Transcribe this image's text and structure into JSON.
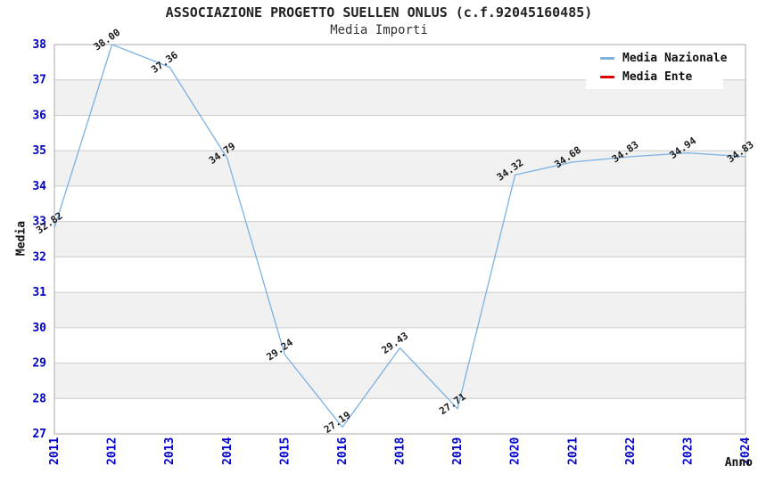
{
  "header": {
    "title": "ASSOCIAZIONE PROGETTO SUELLEN ONLUS (c.f.92045160485)",
    "subtitle": "Media Importi"
  },
  "legend": {
    "items": [
      {
        "label": "Media Nazionale",
        "color": "#7bb1e3"
      },
      {
        "label": "Media Ente",
        "color": "#dd0000"
      }
    ]
  },
  "chart_data": {
    "type": "line",
    "title": "ASSOCIAZIONE PROGETTO SUELLEN ONLUS (c.f.92045160485)",
    "subtitle": "Media Importi",
    "xlabel": "Anno",
    "ylabel": "Media",
    "ylim": [
      27,
      38
    ],
    "y_ticks": [
      27,
      28,
      29,
      30,
      31,
      32,
      33,
      34,
      35,
      36,
      37,
      38
    ],
    "categories": [
      "2011",
      "2012",
      "2013",
      "2014",
      "2015",
      "2016",
      "2018",
      "2019",
      "2020",
      "2021",
      "2022",
      "2023",
      "2024"
    ],
    "series": [
      {
        "name": "Media Nazionale",
        "color": "#7bb1e3",
        "values": [
          32.82,
          38.0,
          37.36,
          34.79,
          29.24,
          27.19,
          29.43,
          27.71,
          34.32,
          34.68,
          34.83,
          34.94,
          34.83
        ],
        "point_labels": [
          "32.82",
          "38.00",
          "37.36",
          "34.79",
          "29.24",
          "27.19",
          "29.43",
          "27.71",
          "34.32",
          "34.68",
          "34.83",
          "34.94",
          "34.83"
        ]
      },
      {
        "name": "Media Ente",
        "color": "#dd0000",
        "values": [],
        "point_labels": []
      }
    ],
    "grid": true,
    "legend_position": "top-right",
    "colors": {
      "tick_label": "#0000cc",
      "grid_line": "#cccccc",
      "band": "#f1f1f1",
      "plot_border": "#aaaaaa",
      "point_label": "#1a1a1a"
    }
  }
}
